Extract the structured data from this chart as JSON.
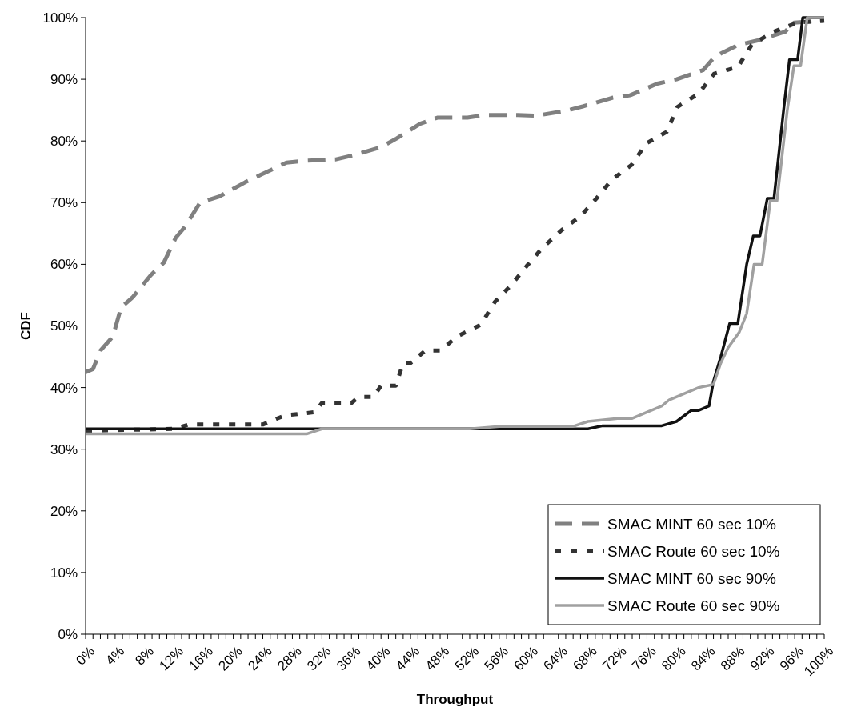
{
  "chart_data": {
    "type": "line",
    "xlabel": "Throughput",
    "ylabel": "CDF",
    "xlim": [
      0,
      100
    ],
    "ylim": [
      0,
      100
    ],
    "xticks": [
      {
        "value": 0,
        "label": "0%"
      },
      {
        "value": 1,
        "label": null
      },
      {
        "value": 2,
        "label": null
      },
      {
        "value": 3,
        "label": null
      },
      {
        "value": 4,
        "label": "4%"
      },
      {
        "value": 5,
        "label": null
      },
      {
        "value": 6,
        "label": null
      },
      {
        "value": 7,
        "label": null
      },
      {
        "value": 8,
        "label": "8%"
      },
      {
        "value": 9,
        "label": null
      },
      {
        "value": 10,
        "label": null
      },
      {
        "value": 11,
        "label": null
      },
      {
        "value": 12,
        "label": "12%"
      },
      {
        "value": 13,
        "label": null
      },
      {
        "value": 14,
        "label": null
      },
      {
        "value": 15,
        "label": null
      },
      {
        "value": 16,
        "label": "16%"
      },
      {
        "value": 17,
        "label": null
      },
      {
        "value": 18,
        "label": null
      },
      {
        "value": 19,
        "label": null
      },
      {
        "value": 20,
        "label": "20%"
      },
      {
        "value": 21,
        "label": null
      },
      {
        "value": 22,
        "label": null
      },
      {
        "value": 23,
        "label": null
      },
      {
        "value": 24,
        "label": "24%"
      },
      {
        "value": 25,
        "label": null
      },
      {
        "value": 26,
        "label": null
      },
      {
        "value": 27,
        "label": null
      },
      {
        "value": 28,
        "label": "28%"
      },
      {
        "value": 29,
        "label": null
      },
      {
        "value": 30,
        "label": null
      },
      {
        "value": 31,
        "label": null
      },
      {
        "value": 32,
        "label": "32%"
      },
      {
        "value": 33,
        "label": null
      },
      {
        "value": 34,
        "label": null
      },
      {
        "value": 35,
        "label": null
      },
      {
        "value": 36,
        "label": "36%"
      },
      {
        "value": 37,
        "label": null
      },
      {
        "value": 38,
        "label": null
      },
      {
        "value": 39,
        "label": null
      },
      {
        "value": 40,
        "label": "40%"
      },
      {
        "value": 41,
        "label": null
      },
      {
        "value": 42,
        "label": null
      },
      {
        "value": 43,
        "label": null
      },
      {
        "value": 44,
        "label": "44%"
      },
      {
        "value": 45,
        "label": null
      },
      {
        "value": 46,
        "label": null
      },
      {
        "value": 47,
        "label": null
      },
      {
        "value": 48,
        "label": "48%"
      },
      {
        "value": 49,
        "label": null
      },
      {
        "value": 50,
        "label": null
      },
      {
        "value": 51,
        "label": null
      },
      {
        "value": 52,
        "label": "52%"
      },
      {
        "value": 53,
        "label": null
      },
      {
        "value": 54,
        "label": null
      },
      {
        "value": 55,
        "label": null
      },
      {
        "value": 56,
        "label": "56%"
      },
      {
        "value": 57,
        "label": null
      },
      {
        "value": 58,
        "label": null
      },
      {
        "value": 59,
        "label": null
      },
      {
        "value": 60,
        "label": "60%"
      },
      {
        "value": 61,
        "label": null
      },
      {
        "value": 62,
        "label": null
      },
      {
        "value": 63,
        "label": null
      },
      {
        "value": 64,
        "label": "64%"
      },
      {
        "value": 65,
        "label": null
      },
      {
        "value": 66,
        "label": null
      },
      {
        "value": 67,
        "label": null
      },
      {
        "value": 68,
        "label": "68%"
      },
      {
        "value": 69,
        "label": null
      },
      {
        "value": 70,
        "label": null
      },
      {
        "value": 71,
        "label": null
      },
      {
        "value": 72,
        "label": "72%"
      },
      {
        "value": 73,
        "label": null
      },
      {
        "value": 74,
        "label": null
      },
      {
        "value": 75,
        "label": null
      },
      {
        "value": 76,
        "label": "76%"
      },
      {
        "value": 77,
        "label": null
      },
      {
        "value": 78,
        "label": null
      },
      {
        "value": 79,
        "label": null
      },
      {
        "value": 80,
        "label": "80%"
      },
      {
        "value": 81,
        "label": null
      },
      {
        "value": 82,
        "label": null
      },
      {
        "value": 83,
        "label": null
      },
      {
        "value": 84,
        "label": "84%"
      },
      {
        "value": 85,
        "label": null
      },
      {
        "value": 86,
        "label": null
      },
      {
        "value": 87,
        "label": null
      },
      {
        "value": 88,
        "label": "88%"
      },
      {
        "value": 89,
        "label": null
      },
      {
        "value": 90,
        "label": null
      },
      {
        "value": 91,
        "label": null
      },
      {
        "value": 92,
        "label": "92%"
      },
      {
        "value": 93,
        "label": null
      },
      {
        "value": 94,
        "label": null
      },
      {
        "value": 95,
        "label": null
      },
      {
        "value": 96,
        "label": "96%"
      },
      {
        "value": 97,
        "label": null
      },
      {
        "value": 98,
        "label": null
      },
      {
        "value": 99,
        "label": null
      },
      {
        "value": 100,
        "label": "100%"
      }
    ],
    "yticks": [
      {
        "value": 0,
        "label": "0%"
      },
      {
        "value": 10,
        "label": "10%"
      },
      {
        "value": 20,
        "label": "20%"
      },
      {
        "value": 30,
        "label": "30%"
      },
      {
        "value": 40,
        "label": "40%"
      },
      {
        "value": 50,
        "label": "50%"
      },
      {
        "value": 60,
        "label": "60%"
      },
      {
        "value": 70,
        "label": "70%"
      },
      {
        "value": 80,
        "label": "80%"
      },
      {
        "value": 90,
        "label": "90%"
      },
      {
        "value": 100,
        "label": "100%"
      }
    ],
    "grid": false,
    "legend": "bottom right",
    "marker": "none",
    "series": [
      {
        "name": "SMAC MINT 60 sec 10%",
        "color": "#808080",
        "line_style": "dashed",
        "x": [
          0,
          1,
          2,
          3.7,
          4.8,
          6.4,
          8.8,
          10.6,
          12.2,
          13.4,
          15.5,
          18.1,
          21.6,
          23.7,
          27.2,
          29.8,
          33.8,
          36.3,
          40,
          42.1,
          45.3,
          47.7,
          51.7,
          54,
          58.5,
          61,
          65,
          67.3,
          71.3,
          73.7,
          77.4,
          80,
          83.6,
          85.2,
          88.4,
          91,
          94.7,
          95.9,
          100
        ],
        "values": [
          42.5,
          43,
          46,
          48.3,
          53,
          54.7,
          58.2,
          60.3,
          64.3,
          66,
          70,
          71,
          73.3,
          74.5,
          76.5,
          76.8,
          77,
          77.7,
          79,
          80.4,
          82.8,
          83.8,
          83.8,
          84.2,
          84.2,
          84.1,
          84.9,
          85.6,
          87,
          87.4,
          89.3,
          90,
          91.5,
          93.7,
          95.6,
          96.3,
          97.7,
          99.2,
          99.5
        ]
      },
      {
        "name": "SMAC Route 60 sec 10%",
        "color": "#333333",
        "line_style": "dotted",
        "x": [
          0,
          12,
          14,
          24,
          27,
          31,
          32,
          36,
          37,
          39,
          40,
          42,
          43,
          44,
          46,
          48,
          50.3,
          53.5,
          55.4,
          57.6,
          59.7,
          61.8,
          64.4,
          67,
          69.1,
          71.3,
          73.9,
          75.9,
          78.7,
          80.1,
          83,
          85.1,
          88.3,
          90.2,
          93.1,
          96.4,
          100
        ],
        "values": [
          33,
          33.3,
          34,
          34,
          35.5,
          36,
          37.5,
          37.5,
          38.5,
          38.5,
          40.3,
          40.3,
          44,
          44,
          46,
          46,
          48.3,
          50.2,
          53.9,
          56.6,
          59.7,
          62.6,
          65.5,
          67.8,
          70.6,
          73.8,
          76.1,
          79.6,
          81.5,
          85.5,
          87.7,
          90.9,
          92,
          95.6,
          97.7,
          99.2,
          99.5
        ]
      },
      {
        "name": "SMAC MINT 60 sec 90%",
        "color": "#111111",
        "line_style": "solid",
        "x": [
          0,
          68,
          70,
          78,
          80,
          82,
          83,
          84.4,
          85,
          86,
          87.2,
          88.3,
          89.5,
          90.4,
          91.3,
          92.3,
          93.2,
          94.5,
          95.3,
          96.4,
          97.1,
          100
        ],
        "values": [
          33.3,
          33.3,
          33.8,
          33.8,
          34.5,
          36.3,
          36.3,
          37,
          41,
          45,
          50.4,
          50.4,
          60,
          64.6,
          64.6,
          70.7,
          70.7,
          85,
          93.2,
          93.2,
          100,
          100
        ]
      },
      {
        "name": "SMAC Route 60 sec 90%",
        "color": "#a0a0a0",
        "line_style": "solid",
        "x": [
          0,
          30,
          32,
          52,
          56,
          66,
          68,
          72,
          74,
          76,
          78,
          79,
          81,
          83,
          85,
          86,
          87,
          88.5,
          89.5,
          90.5,
          91.6,
          92.7,
          93.6,
          95,
          95.9,
          96.8,
          97.7,
          100
        ],
        "values": [
          32.5,
          32.5,
          33.3,
          33.3,
          33.7,
          33.7,
          34.5,
          35,
          35,
          36,
          37,
          38,
          39,
          40,
          40.5,
          44,
          46.5,
          49,
          52,
          60,
          60,
          70.3,
          70.3,
          85,
          92.2,
          92.2,
          100,
          100
        ]
      }
    ]
  }
}
